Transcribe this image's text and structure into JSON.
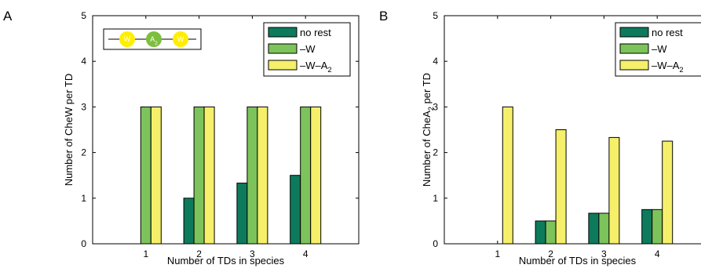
{
  "colors": {
    "no_rest": "#0e7a5c",
    "minus_W": "#7dc35b",
    "minus_W_A2": "#f5ef6a",
    "inset_W": "#ffee00",
    "inset_A": "#7dbf3d"
  },
  "chart_data": [
    {
      "type": "bar",
      "panel": "A",
      "categories": [
        "1",
        "2",
        "3",
        "4"
      ],
      "xlabel": "Number of TDs in species",
      "ylabel": {
        "pre": "Number of CheW per TD",
        "sub": "",
        "post": ""
      },
      "ylim": [
        0,
        5
      ],
      "yticks": [
        "0",
        "1",
        "2",
        "3",
        "4",
        "5"
      ],
      "legend_position": "top-right",
      "series": [
        {
          "name": {
            "text": "no rest",
            "sub": ""
          },
          "color": "#0e7a5c",
          "values": [
            0,
            1,
            1.33,
            1.5
          ]
        },
        {
          "name": {
            "text": "–W",
            "sub": ""
          },
          "color": "#7dc35b",
          "values": [
            3,
            3,
            3,
            3
          ]
        },
        {
          "name": {
            "text": "–W–A",
            "sub": "2"
          },
          "color": "#f5ef6a",
          "values": [
            3,
            3,
            3,
            3
          ]
        }
      ],
      "inset": {
        "labels": [
          {
            "text": "W",
            "sub": ""
          },
          {
            "text": "A",
            "sub": "2"
          },
          {
            "text": "W",
            "sub": ""
          }
        ]
      }
    },
    {
      "type": "bar",
      "panel": "B",
      "categories": [
        "1",
        "2",
        "3",
        "4"
      ],
      "xlabel": "Number of TDs in species",
      "ylabel": {
        "pre": "Number of CheA",
        "sub": "2",
        "post": " per TD"
      },
      "ylim": [
        0,
        5
      ],
      "yticks": [
        "0",
        "1",
        "2",
        "3",
        "4",
        "5"
      ],
      "legend_position": "top-right",
      "series": [
        {
          "name": {
            "text": "no rest",
            "sub": ""
          },
          "color": "#0e7a5c",
          "values": [
            0,
            0.5,
            0.67,
            0.75
          ]
        },
        {
          "name": {
            "text": "–W",
            "sub": ""
          },
          "color": "#7dc35b",
          "values": [
            0,
            0.5,
            0.67,
            0.75
          ]
        },
        {
          "name": {
            "text": "–W–A",
            "sub": "2"
          },
          "color": "#f5ef6a",
          "values": [
            3,
            2.5,
            2.33,
            2.25
          ]
        }
      ]
    }
  ]
}
